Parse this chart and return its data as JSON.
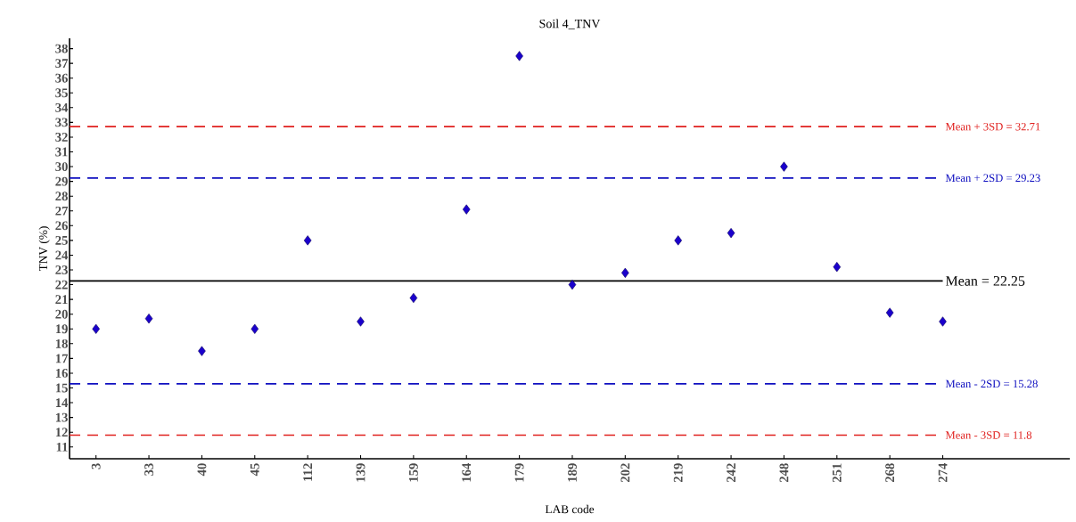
{
  "chart_data": {
    "type": "scatter",
    "title": "Soil 4_TNV",
    "xlabel": "LAB code",
    "ylabel": "TNV (%)",
    "categories": [
      "3",
      "33",
      "40",
      "45",
      "112",
      "139",
      "159",
      "164",
      "179",
      "189",
      "202",
      "219",
      "242",
      "248",
      "251",
      "268",
      "274"
    ],
    "series": [
      {
        "color": "#1a00cc",
        "values": [
          19.0,
          19.7,
          17.5,
          19.0,
          25.0,
          19.5,
          21.1,
          27.1,
          37.5,
          22.0,
          22.8,
          25.0,
          25.5,
          30.0,
          23.2,
          20.1,
          19.5
        ]
      }
    ],
    "marker": "diamond",
    "ylim": [
      10.2,
      38.7
    ],
    "yticks": [
      11,
      12,
      13,
      14,
      15,
      16,
      17,
      18,
      19,
      20,
      21,
      22,
      23,
      24,
      25,
      26,
      27,
      28,
      29,
      30,
      31,
      32,
      33,
      34,
      35,
      36,
      37,
      38
    ],
    "ref_lines": [
      {
        "axis": "y",
        "value": 32.71,
        "label": "Mean + 3SD = 32.71",
        "color": "#e0201e",
        "line_style": "dashed"
      },
      {
        "axis": "y",
        "value": 29.23,
        "label": "Mean + 2SD = 29.23",
        "color": "#1010c0",
        "line_style": "dashed"
      },
      {
        "axis": "y",
        "value": 22.25,
        "label": "Mean = 22.25",
        "color": "#000000",
        "line_style": "solid"
      },
      {
        "axis": "y",
        "value": 15.28,
        "label": "Mean - 2SD = 15.28",
        "color": "#1010c0",
        "line_style": "dashed"
      },
      {
        "axis": "y",
        "value": 11.8,
        "label": "Mean - 3SD = 11.8",
        "color": "#e0201e",
        "line_style": "dashed"
      }
    ]
  }
}
